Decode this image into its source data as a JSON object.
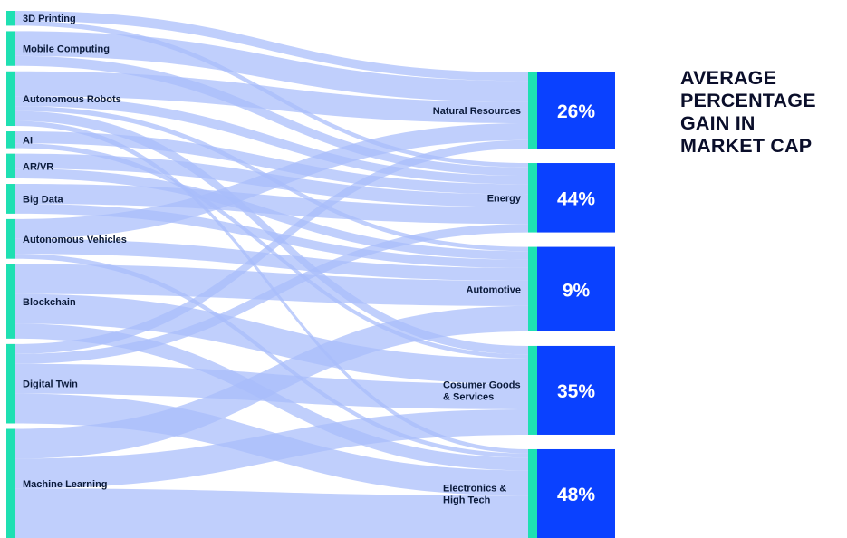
{
  "title_lines": [
    "AVERAGE",
    "PERCENTAGE",
    "GAIN IN",
    "MARKET CAP"
  ],
  "colors": {
    "link": "#a7bdfb",
    "source_bar": "#1ee0b2",
    "target_box": "#0a41ff",
    "text": "#0a1a3a"
  },
  "chart_data": {
    "type": "sankey",
    "sources": [
      "3D Printing",
      "Mobile Computing",
      "Autonomous Robots",
      "AI",
      "AR/VR",
      "Big Data",
      "Autonomous Vehicles",
      "Blockchain",
      "Digital Twin",
      "Machine Learning"
    ],
    "targets": [
      {
        "name": "Natural Resources",
        "lines": [
          "Natural Resources"
        ],
        "gain": "26%"
      },
      {
        "name": "Energy",
        "lines": [
          "Energy"
        ],
        "gain": "44%"
      },
      {
        "name": "Automotive",
        "lines": [
          "Automotive"
        ],
        "gain": "9%"
      },
      {
        "name": "Cosumer Goods & Services",
        "lines": [
          "Cosumer Goods",
          "& Services"
        ],
        "gain": "35%"
      },
      {
        "name": "Electronics & High Tech",
        "lines": [
          "Electronics &",
          "High Tech"
        ],
        "gain": "48%"
      }
    ],
    "links": [
      {
        "source": "3D Printing",
        "target": "Natural Resources",
        "value": 1
      },
      {
        "source": "3D Printing",
        "target": "Energy",
        "value": 0.5
      },
      {
        "source": "Mobile Computing",
        "target": "Natural Resources",
        "value": 2.5
      },
      {
        "source": "Mobile Computing",
        "target": "Energy",
        "value": 1
      },
      {
        "source": "Autonomous Robots",
        "target": "Natural Resources",
        "value": 2.5
      },
      {
        "source": "Autonomous Robots",
        "target": "Energy",
        "value": 1
      },
      {
        "source": "Autonomous Robots",
        "target": "Automotive",
        "value": 0.5
      },
      {
        "source": "Autonomous Robots",
        "target": "Cosumer Goods & Services",
        "value": 1
      },
      {
        "source": "Autonomous Robots",
        "target": "Electronics & High Tech",
        "value": 0.5
      },
      {
        "source": "AI",
        "target": "Energy",
        "value": 1.2
      },
      {
        "source": "AI",
        "target": "Cosumer Goods & Services",
        "value": 0.5
      },
      {
        "source": "AR/VR",
        "target": "Energy",
        "value": 1.5
      },
      {
        "source": "AR/VR",
        "target": "Automotive",
        "value": 1
      },
      {
        "source": "Big Data",
        "target": "Energy",
        "value": 2
      },
      {
        "source": "Big Data",
        "target": "Automotive",
        "value": 1
      },
      {
        "source": "Autonomous Vehicles",
        "target": "Natural Resources",
        "value": 2
      },
      {
        "source": "Autonomous Vehicles",
        "target": "Automotive",
        "value": 1.5
      },
      {
        "source": "Autonomous Vehicles",
        "target": "Electronics & High Tech",
        "value": 0.5
      },
      {
        "source": "Blockchain",
        "target": "Automotive",
        "value": 3
      },
      {
        "source": "Blockchain",
        "target": "Cosumer Goods & Services",
        "value": 3
      },
      {
        "source": "Blockchain",
        "target": "Electronics & High Tech",
        "value": 1.5
      },
      {
        "source": "Digital Twin",
        "target": "Natural Resources",
        "value": 1
      },
      {
        "source": "Digital Twin",
        "target": "Energy",
        "value": 1
      },
      {
        "source": "Digital Twin",
        "target": "Cosumer Goods & Services",
        "value": 3
      },
      {
        "source": "Digital Twin",
        "target": "Electronics & High Tech",
        "value": 3
      },
      {
        "source": "Machine Learning",
        "target": "Automotive",
        "value": 3
      },
      {
        "source": "Machine Learning",
        "target": "Cosumer Goods & Services",
        "value": 3
      },
      {
        "source": "Machine Learning",
        "target": "Electronics & High Tech",
        "value": 5
      }
    ]
  }
}
